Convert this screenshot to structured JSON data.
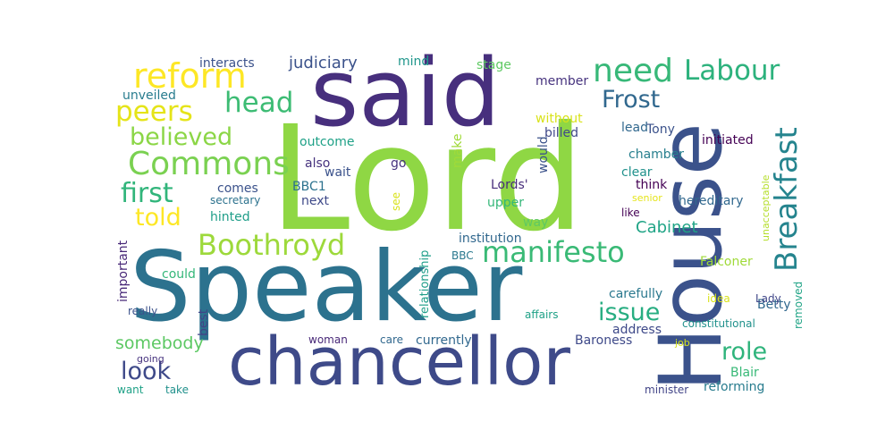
{
  "palette": {
    "background": "#ffffff",
    "colors": [
      "#440154",
      "#46327e",
      "#365c8d",
      "#277f8e",
      "#1fa187",
      "#4ac16d",
      "#a0da39",
      "#fde725"
    ]
  },
  "words": [
    {
      "text": "Lord",
      "color": "#8fd744"
    },
    {
      "text": "Speaker",
      "color": "#2c728e"
    },
    {
      "text": "said",
      "color": "#472f7d"
    },
    {
      "text": "House",
      "color": "#3b528b"
    },
    {
      "text": "chancellor",
      "color": "#3e4a89"
    },
    {
      "text": "Commons",
      "color": "#7ad151"
    },
    {
      "text": "Breakfast",
      "color": "#25848e"
    },
    {
      "text": "reform",
      "color": "#fde725"
    },
    {
      "text": "need",
      "color": "#37b878"
    },
    {
      "text": "Labour",
      "color": "#2db27d"
    },
    {
      "text": "peers",
      "color": "#e5e419"
    },
    {
      "text": "head",
      "color": "#3dbc74"
    },
    {
      "text": "Frost",
      "color": "#31688e"
    },
    {
      "text": "believed",
      "color": "#8bd646"
    },
    {
      "text": "first",
      "color": "#31b57b"
    },
    {
      "text": "told",
      "color": "#fde725"
    },
    {
      "text": "Boothroyd",
      "color": "#9dd93b"
    },
    {
      "text": "manifesto",
      "color": "#3aba76"
    },
    {
      "text": "issue",
      "color": "#27ad81"
    },
    {
      "text": "role",
      "color": "#2fb47c"
    },
    {
      "text": "look",
      "color": "#3e4989"
    },
    {
      "text": "somebody",
      "color": "#5cc863"
    },
    {
      "text": "judiciary",
      "color": "#3b528b"
    },
    {
      "text": "interacts",
      "color": "#3b528b"
    },
    {
      "text": "mind",
      "color": "#1f968b"
    },
    {
      "text": "stage",
      "color": "#5ec962"
    },
    {
      "text": "member",
      "color": "#46337e"
    },
    {
      "text": "unveiled",
      "color": "#287c8e"
    },
    {
      "text": "without",
      "color": "#d8e219"
    },
    {
      "text": "billed",
      "color": "#3f4889"
    },
    {
      "text": "lead",
      "color": "#31688e"
    },
    {
      "text": "Tony",
      "color": "#3b528b"
    },
    {
      "text": "chamber",
      "color": "#277f8e"
    },
    {
      "text": "initiated",
      "color": "#440154"
    },
    {
      "text": "outcome",
      "color": "#1fa187"
    },
    {
      "text": "also",
      "color": "#46327e"
    },
    {
      "text": "go",
      "color": "#46327e"
    },
    {
      "text": "wait",
      "color": "#3b528b"
    },
    {
      "text": "make",
      "color": "#a0da39"
    },
    {
      "text": "would",
      "color": "#3b528b"
    },
    {
      "text": "clear",
      "color": "#21918c"
    },
    {
      "text": "think",
      "color": "#440154"
    },
    {
      "text": "comes",
      "color": "#3b528b"
    },
    {
      "text": "BBC1",
      "color": "#2c728e"
    },
    {
      "text": "Lords'",
      "color": "#472d7b"
    },
    {
      "text": "senior",
      "color": "#e5e419"
    },
    {
      "text": "secretary",
      "color": "#2c728e"
    },
    {
      "text": "next",
      "color": "#3e4989"
    },
    {
      "text": "see",
      "color": "#d8e219"
    },
    {
      "text": "upper",
      "color": "#35b779"
    },
    {
      "text": "hereditary",
      "color": "#31688e"
    },
    {
      "text": "hinted",
      "color": "#1f9e89"
    },
    {
      "text": "like",
      "color": "#440154"
    },
    {
      "text": "unacceptable",
      "color": "#b5de2b"
    },
    {
      "text": "Cabinet",
      "color": "#20a486"
    },
    {
      "text": "way",
      "color": "#5ec962"
    },
    {
      "text": "institution",
      "color": "#31688e"
    },
    {
      "text": "important",
      "color": "#482878"
    },
    {
      "text": "relationship",
      "color": "#1f9e89"
    },
    {
      "text": "BBC",
      "color": "#2a788e"
    },
    {
      "text": "could",
      "color": "#35b779"
    },
    {
      "text": "Falconer",
      "color": "#a0da39"
    },
    {
      "text": "carefully",
      "color": "#2a788e"
    },
    {
      "text": "idea",
      "color": "#d8e219"
    },
    {
      "text": "Betty",
      "color": "#31688e"
    },
    {
      "text": "removed",
      "color": "#20a486"
    },
    {
      "text": "best",
      "color": "#414487"
    },
    {
      "text": "Lady",
      "color": "#404688"
    },
    {
      "text": "really",
      "color": "#3b528b"
    },
    {
      "text": "affairs",
      "color": "#1fa187"
    },
    {
      "text": "constitutional",
      "color": "#21918c"
    },
    {
      "text": "address",
      "color": "#3e4989"
    },
    {
      "text": "woman",
      "color": "#482878"
    },
    {
      "text": "care",
      "color": "#31688e"
    },
    {
      "text": "currently",
      "color": "#31688e"
    },
    {
      "text": "job",
      "color": "#d8e219"
    },
    {
      "text": "Baroness",
      "color": "#3e4989"
    },
    {
      "text": "going",
      "color": "#46327e"
    },
    {
      "text": "Blair",
      "color": "#38b977"
    },
    {
      "text": "want",
      "color": "#1fa187"
    },
    {
      "text": "take",
      "color": "#21918c"
    },
    {
      "text": "minister",
      "color": "#414487"
    },
    {
      "text": "reforming",
      "color": "#287c8e"
    }
  ]
}
